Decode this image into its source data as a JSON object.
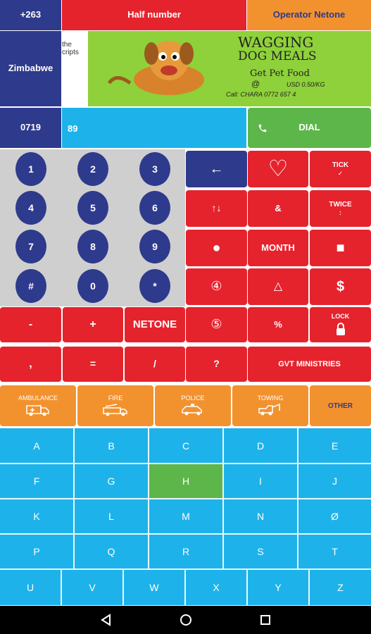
{
  "top": {
    "country_code": "+263",
    "half_number": "Half number",
    "operator": "Operator Netone",
    "country": "Zimbabwe"
  },
  "ad": {
    "left_text_1": "the",
    "left_text_2": "cripts",
    "brand_line_1": "WAGGING",
    "brand_line_2": "DOG MEALS",
    "slogan": "Get Pet Food",
    "at": "@",
    "price": "USD 0.50/KG",
    "contact": "Call:  CHARA  0772 657 4"
  },
  "dial_row": {
    "prefix": "0719",
    "input_value": "89",
    "dial_label": "DIAL"
  },
  "numpad": [
    "1",
    "2",
    "3",
    "4",
    "5",
    "6",
    "7",
    "8",
    "9",
    "#",
    "0",
    "*"
  ],
  "functions": {
    "back_glyph": "←",
    "heart_glyph": "♡",
    "tick": "TICK",
    "tick_sub": "✓",
    "swap_glyph": "↑↓",
    "ampersand": "&",
    "twice": "TWICE",
    "twice_sub": ":",
    "dot_glyph": "●",
    "month": "MONTH",
    "square_glyph": "■",
    "four_glyph": "④",
    "triangle_glyph": "△",
    "dollar": "$",
    "minus": "-",
    "plus": "+",
    "netone": "NETONE",
    "five_glyph": "⑤",
    "percent": "%",
    "lock": "LOCK",
    "comma": ",",
    "equals": "=",
    "slash": "/",
    "question": "?",
    "gvt": "GVT MINISTRIES"
  },
  "services": {
    "ambulance": "AMBULANCE",
    "fire": "FIRE",
    "police": "POLICE",
    "towing": "TOWING",
    "other": "OTHER"
  },
  "letters": {
    "row1": [
      "A",
      "B",
      "C",
      "D",
      "E"
    ],
    "row2": [
      "F",
      "G",
      "H",
      "I",
      "J"
    ],
    "row3": [
      "K",
      "L",
      "M",
      "N",
      "Ø"
    ],
    "row4": [
      "P",
      "Q",
      "R",
      "S",
      "T"
    ],
    "row5": [
      "U",
      "V",
      "W",
      "X",
      "Y",
      "Z"
    ]
  },
  "colors": {
    "navy": "#2e3a8c",
    "red": "#e5232d",
    "orange": "#f2922f",
    "cyan": "#1db3ea",
    "green": "#5db64a"
  }
}
